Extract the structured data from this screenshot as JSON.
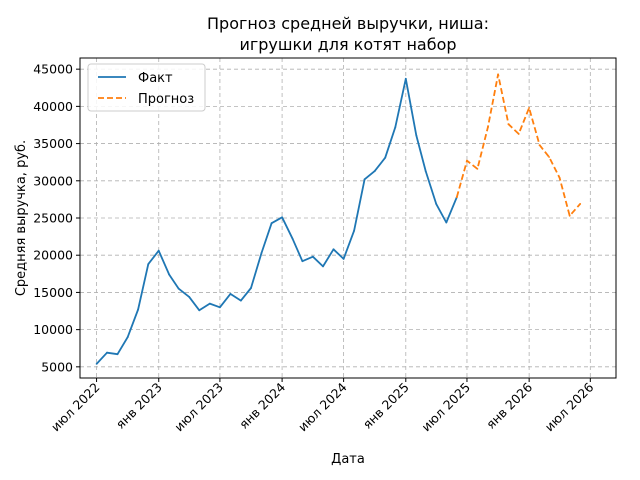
{
  "chart_data": {
    "type": "line",
    "title": [
      "Прогноз средней выручки, ниша:",
      "игрушки для котят набор"
    ],
    "xlabel": "Дата",
    "ylabel": "Средняя выручка, руб.",
    "grid": true,
    "legend_position": "top-left",
    "xlim": [
      "2022-05-13",
      "2026-09-15"
    ],
    "ylim": [
      3500,
      46500
    ],
    "x_ticks": [
      {
        "date": "2022-07-01",
        "label": "июл 2022"
      },
      {
        "date": "2023-01-01",
        "label": "янв 2023"
      },
      {
        "date": "2023-07-01",
        "label": "июл 2023"
      },
      {
        "date": "2024-01-01",
        "label": "янв 2024"
      },
      {
        "date": "2024-07-01",
        "label": "июл 2024"
      },
      {
        "date": "2025-01-01",
        "label": "янв 2025"
      },
      {
        "date": "2025-07-01",
        "label": "июл 2025"
      },
      {
        "date": "2026-01-01",
        "label": "янв 2026"
      },
      {
        "date": "2026-07-01",
        "label": "июл 2026"
      }
    ],
    "y_ticks": [
      5000,
      10000,
      15000,
      20000,
      25000,
      30000,
      35000,
      40000,
      45000
    ],
    "series": [
      {
        "name": "Факт",
        "color": "#1f77b4",
        "style": "solid",
        "x": [
          "2022-07-01",
          "2022-08-01",
          "2022-09-01",
          "2022-10-01",
          "2022-11-01",
          "2022-12-01",
          "2023-01-01",
          "2023-02-01",
          "2023-03-01",
          "2023-04-01",
          "2023-05-01",
          "2023-06-01",
          "2023-07-01",
          "2023-08-01",
          "2023-09-01",
          "2023-10-01",
          "2023-11-01",
          "2023-12-01",
          "2024-01-01",
          "2024-02-01",
          "2024-03-01",
          "2024-04-01",
          "2024-05-01",
          "2024-06-01",
          "2024-07-01",
          "2024-08-01",
          "2024-09-01",
          "2024-10-01",
          "2024-11-01",
          "2024-12-01",
          "2025-01-01",
          "2025-02-01",
          "2025-03-01",
          "2025-04-01",
          "2025-05-01",
          "2025-06-01"
        ],
        "values": [
          5400,
          6900,
          6700,
          9000,
          12700,
          18800,
          20600,
          17400,
          15500,
          14400,
          12600,
          13500,
          13000,
          14800,
          13900,
          15600,
          20300,
          24300,
          25100,
          22200,
          19200,
          19800,
          18500,
          20800,
          19500,
          23300,
          30200,
          31300,
          33100,
          37200,
          43700,
          36100,
          31300,
          26900,
          24400,
          27800
        ]
      },
      {
        "name": "Прогноз",
        "color": "#ff7f0e",
        "style": "dashed",
        "x": [
          "2025-06-01",
          "2025-07-01",
          "2025-08-01",
          "2025-09-01",
          "2025-10-01",
          "2025-11-01",
          "2025-12-01",
          "2026-01-01",
          "2026-02-01",
          "2026-03-01",
          "2026-04-01",
          "2026-05-01",
          "2026-06-01"
        ],
        "values": [
          27800,
          32700,
          31600,
          37200,
          44300,
          37600,
          36300,
          39800,
          34800,
          33200,
          30400,
          25300,
          26900
        ]
      }
    ]
  }
}
